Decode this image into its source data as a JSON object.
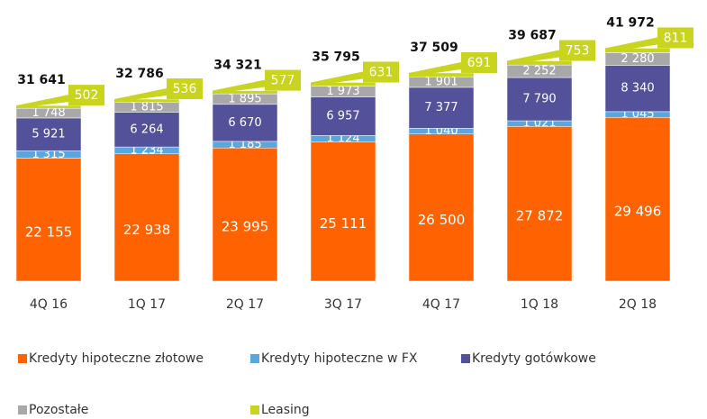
{
  "chart_data": {
    "type": "stacked_bar",
    "categories": [
      "4Q 16",
      "1Q 17",
      "2Q 17",
      "3Q 17",
      "4Q 17",
      "1Q 18",
      "2Q 18"
    ],
    "series": [
      {
        "name": "Kredyty hipoteczne złotowe",
        "color": "#ff6200",
        "values": [
          22155,
          22938,
          23995,
          25111,
          26500,
          27872,
          29496
        ],
        "value_labels": [
          "22 155",
          "22 938",
          "23 995",
          "25 111",
          "26 500",
          "27 872",
          "29 496"
        ]
      },
      {
        "name": "Kredyty hipoteczne w FX",
        "color": "#5aa7e0",
        "values": [
          1315,
          1234,
          1185,
          1124,
          1040,
          1021,
          1045
        ],
        "value_labels": [
          "1 315",
          "1 234",
          "1 185",
          "1 124",
          "1 040",
          "1 021",
          "1 045"
        ]
      },
      {
        "name": "Kredyty gotówkowe",
        "color": "#525199",
        "values": [
          5921,
          6264,
          6670,
          6957,
          7377,
          7790,
          8340
        ],
        "value_labels": [
          "5 921",
          "6 264",
          "6 670",
          "6 957",
          "7 377",
          "7 790",
          "8 340"
        ]
      },
      {
        "name": "Pozostałe",
        "color": "#a8a8a8",
        "values": [
          1748,
          1815,
          1895,
          1973,
          1901,
          2252,
          2280
        ],
        "value_labels": [
          "1 748",
          "1 815",
          "1 895",
          "1 973",
          "1 901",
          "2 252",
          "2 280"
        ]
      },
      {
        "name": "Leasing",
        "color": "#c8d41e",
        "values": [
          502,
          536,
          577,
          631,
          691,
          753,
          811
        ]
      }
    ],
    "totals": [
      31641,
      32786,
      34321,
      35795,
      37509,
      39687,
      41972
    ],
    "total_labels": [
      "31 641",
      "32 786",
      "34 321",
      "35 795",
      "37 509",
      "39 687",
      "41 972"
    ],
    "ylim": [
      0,
      50000
    ]
  }
}
